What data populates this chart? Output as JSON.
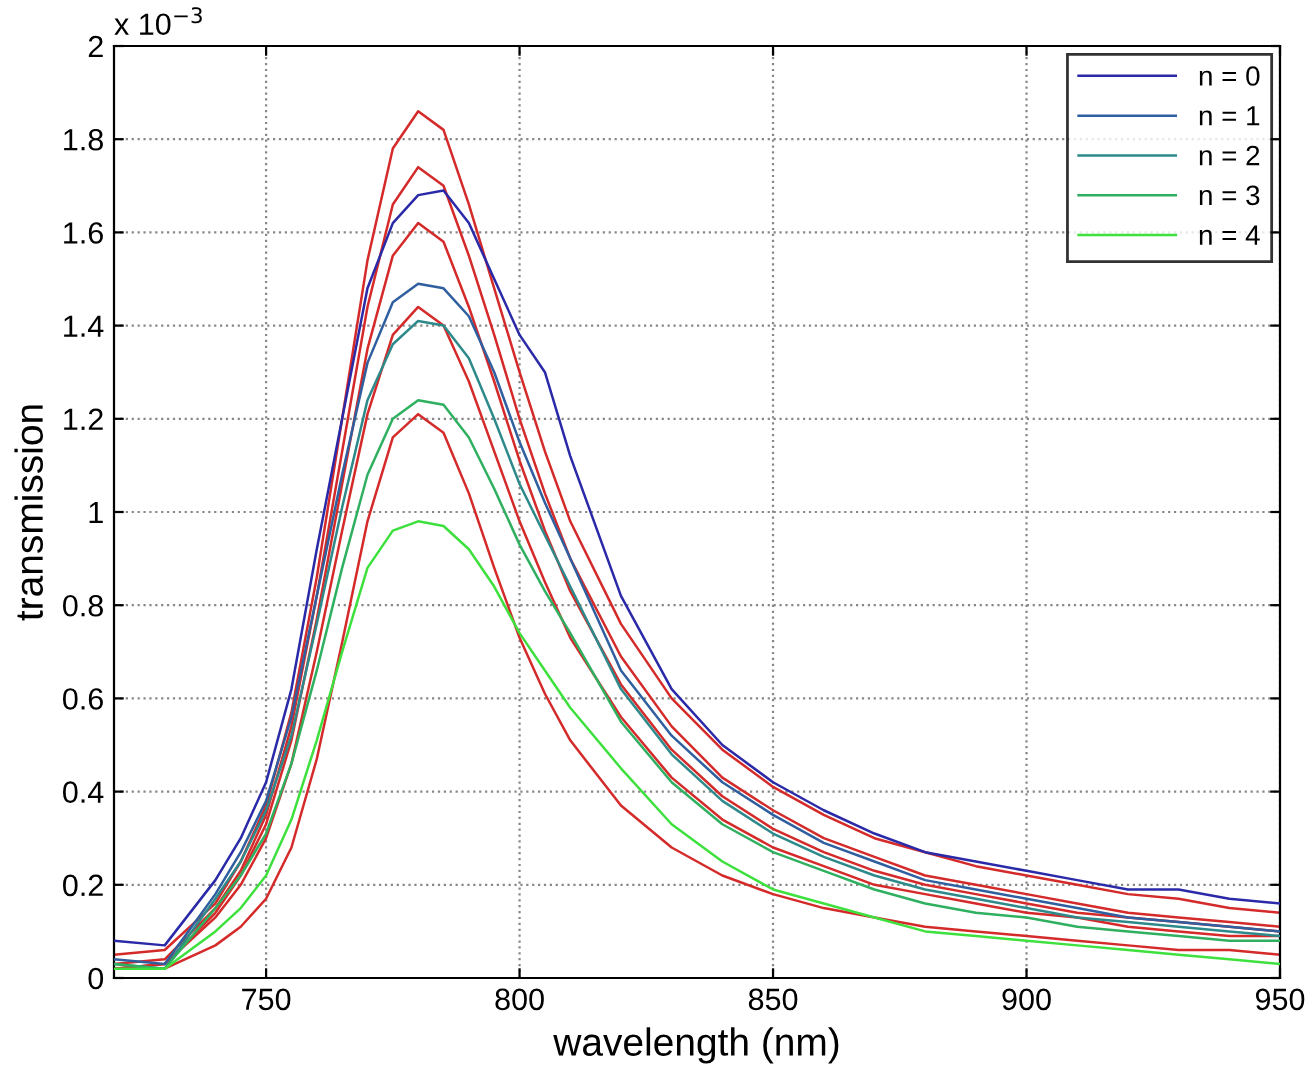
{
  "chart_data": {
    "type": "line",
    "xlabel": "wavelength (nm)",
    "ylabel": "transmission",
    "annotations": [
      "x 10$^{−3}$"
    ],
    "x": [
      720,
      730,
      740,
      745,
      750,
      755,
      760,
      765,
      770,
      775,
      780,
      785,
      790,
      795,
      800,
      805,
      810,
      820,
      830,
      840,
      850,
      860,
      870,
      880,
      890,
      900,
      910,
      920,
      930,
      940,
      950
    ],
    "xlim": [
      720,
      950
    ],
    "xticks": [
      750,
      800,
      850,
      900,
      950
    ],
    "ylim": [
      0,
      2
    ],
    "yticks": [
      0,
      0.2,
      0.4,
      0.6,
      0.8,
      1,
      1.2,
      1.4,
      1.6,
      1.8,
      2
    ],
    "grid": true,
    "legend": "top right",
    "line_style": "solid",
    "marker": "none",
    "series": [
      {
        "name": "n = 0",
        "color": "#2a2aa8",
        "values": [
          0.08,
          0.07,
          0.21,
          0.3,
          0.42,
          0.62,
          0.92,
          1.2,
          1.48,
          1.62,
          1.68,
          1.69,
          1.62,
          1.5,
          1.38,
          1.3,
          1.12,
          0.82,
          0.62,
          0.5,
          0.42,
          0.36,
          0.31,
          0.27,
          0.25,
          0.23,
          0.21,
          0.19,
          0.19,
          0.17,
          0.16
        ]
      },
      {
        "name": "n = 1",
        "color": "#2f5f9f",
        "values": [
          0.04,
          0.03,
          0.18,
          0.27,
          0.38,
          0.56,
          0.82,
          1.08,
          1.32,
          1.45,
          1.49,
          1.48,
          1.42,
          1.3,
          1.15,
          1.02,
          0.9,
          0.66,
          0.52,
          0.42,
          0.35,
          0.29,
          0.25,
          0.21,
          0.19,
          0.17,
          0.15,
          0.13,
          0.12,
          0.11,
          0.1
        ]
      },
      {
        "name": "n = 2",
        "color": "#2e8a8a",
        "values": [
          0.03,
          0.02,
          0.17,
          0.25,
          0.36,
          0.52,
          0.76,
          1.01,
          1.24,
          1.36,
          1.41,
          1.4,
          1.33,
          1.2,
          1.06,
          0.95,
          0.84,
          0.62,
          0.48,
          0.38,
          0.31,
          0.26,
          0.22,
          0.19,
          0.17,
          0.15,
          0.13,
          0.12,
          0.11,
          0.1,
          0.09
        ]
      },
      {
        "name": "n = 3",
        "color": "#2fb060",
        "values": [
          0.03,
          0.02,
          0.15,
          0.22,
          0.31,
          0.46,
          0.66,
          0.88,
          1.08,
          1.2,
          1.24,
          1.23,
          1.16,
          1.05,
          0.93,
          0.83,
          0.74,
          0.55,
          0.42,
          0.33,
          0.27,
          0.23,
          0.19,
          0.16,
          0.14,
          0.13,
          0.11,
          0.1,
          0.09,
          0.08,
          0.08
        ]
      },
      {
        "name": "n = 4",
        "color": "#3ee03e",
        "values": [
          0.02,
          0.02,
          0.1,
          0.15,
          0.22,
          0.34,
          0.51,
          0.7,
          0.88,
          0.96,
          0.98,
          0.97,
          0.92,
          0.84,
          0.74,
          0.66,
          0.58,
          0.45,
          0.33,
          0.25,
          0.19,
          0.16,
          0.13,
          0.1,
          0.09,
          0.08,
          0.07,
          0.06,
          0.05,
          0.04,
          0.03
        ]
      },
      {
        "color": "#d42a2a",
        "values": [
          0.05,
          0.06,
          0.16,
          0.25,
          0.37,
          0.57,
          0.86,
          1.2,
          1.54,
          1.78,
          1.86,
          1.82,
          1.66,
          1.48,
          1.3,
          1.13,
          0.98,
          0.76,
          0.6,
          0.49,
          0.41,
          0.35,
          0.3,
          0.27,
          0.24,
          0.22,
          0.2,
          0.18,
          0.17,
          0.15,
          0.14
        ]
      },
      {
        "color": "#d42a2a",
        "values": [
          0.03,
          0.04,
          0.15,
          0.23,
          0.35,
          0.54,
          0.82,
          1.13,
          1.44,
          1.66,
          1.74,
          1.7,
          1.55,
          1.38,
          1.2,
          1.04,
          0.9,
          0.69,
          0.54,
          0.43,
          0.36,
          0.3,
          0.26,
          0.22,
          0.2,
          0.18,
          0.16,
          0.14,
          0.13,
          0.12,
          0.11
        ]
      },
      {
        "color": "#d42a2a",
        "values": [
          0.02,
          0.03,
          0.14,
          0.22,
          0.33,
          0.51,
          0.77,
          1.06,
          1.35,
          1.55,
          1.62,
          1.58,
          1.44,
          1.28,
          1.11,
          0.96,
          0.83,
          0.63,
          0.49,
          0.39,
          0.32,
          0.27,
          0.23,
          0.2,
          0.18,
          0.16,
          0.14,
          0.13,
          0.12,
          0.11,
          0.1
        ]
      },
      {
        "color": "#d42a2a",
        "values": [
          0.02,
          0.03,
          0.13,
          0.2,
          0.3,
          0.46,
          0.7,
          0.96,
          1.21,
          1.38,
          1.44,
          1.4,
          1.28,
          1.13,
          0.98,
          0.85,
          0.73,
          0.56,
          0.43,
          0.34,
          0.28,
          0.24,
          0.2,
          0.18,
          0.16,
          0.14,
          0.13,
          0.11,
          0.1,
          0.09,
          0.09
        ]
      },
      {
        "color": "#d42a2a",
        "values": [
          0.02,
          0.02,
          0.07,
          0.11,
          0.17,
          0.28,
          0.47,
          0.72,
          0.98,
          1.16,
          1.21,
          1.17,
          1.04,
          0.88,
          0.73,
          0.61,
          0.51,
          0.37,
          0.28,
          0.22,
          0.18,
          0.15,
          0.13,
          0.11,
          0.1,
          0.09,
          0.08,
          0.07,
          0.06,
          0.06,
          0.05
        ]
      }
    ]
  }
}
